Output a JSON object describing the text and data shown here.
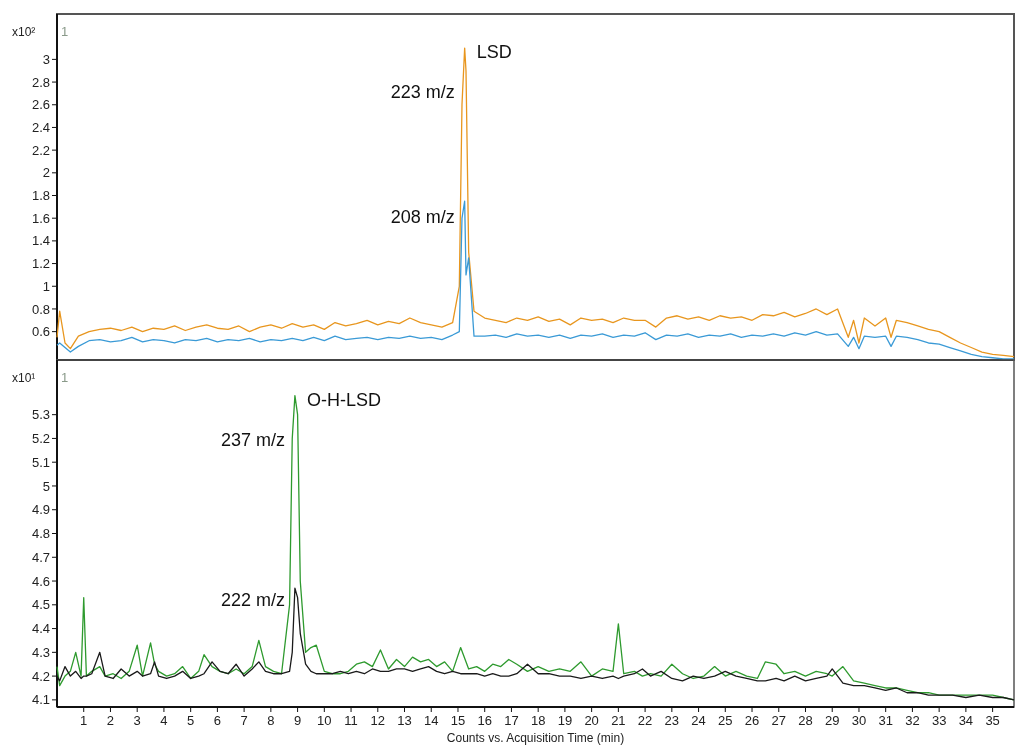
{
  "chart_data": [
    {
      "type": "line",
      "ylabel": "x10²",
      "annotations": [
        {
          "text": "LSD",
          "x": 15.25,
          "y": 3.1
        },
        "1"
      ],
      "xlim": [
        0,
        35.8
      ],
      "ylim": [
        0.35,
        3.4
      ],
      "yticks": [
        0.6,
        0.8,
        1,
        1.2,
        1.4,
        1.6,
        1.8,
        2,
        2.2,
        2.4,
        2.6,
        2.8,
        3
      ],
      "tick_labels": "y",
      "grid": false,
      "x": [
        0,
        0.1,
        0.3,
        0.5,
        0.8,
        1.2,
        1.6,
        2,
        2.4,
        2.8,
        3.2,
        3.6,
        4,
        4.4,
        4.8,
        5.2,
        5.6,
        6,
        6.4,
        6.8,
        7.2,
        7.6,
        8,
        8.4,
        8.8,
        9.2,
        9.6,
        10,
        10.4,
        10.8,
        11.2,
        11.6,
        12,
        12.4,
        12.8,
        13.2,
        13.6,
        14,
        14.4,
        14.8,
        15.05,
        15.15,
        15.25,
        15.3,
        15.4,
        15.6,
        16,
        16.4,
        16.8,
        17.2,
        17.6,
        18,
        18.4,
        18.8,
        19.2,
        19.6,
        20,
        20.4,
        20.8,
        21.2,
        21.6,
        22,
        22.4,
        22.8,
        23.2,
        23.6,
        24,
        24.4,
        24.8,
        25.2,
        25.6,
        26,
        26.4,
        26.8,
        27.2,
        27.6,
        28,
        28.4,
        28.8,
        29.2,
        29.6,
        29.8,
        30,
        30.2,
        30.6,
        31,
        31.2,
        31.4,
        31.8,
        32.2,
        32.6,
        33,
        33.4,
        33.8,
        34.2,
        34.6,
        35,
        35.4,
        35.8
      ],
      "series": [
        {
          "name": "223 m/z",
          "color": "#e8961e",
          "values": [
            0.55,
            0.78,
            0.5,
            0.45,
            0.56,
            0.6,
            0.62,
            0.63,
            0.61,
            0.64,
            0.6,
            0.63,
            0.62,
            0.65,
            0.61,
            0.64,
            0.66,
            0.63,
            0.62,
            0.65,
            0.6,
            0.64,
            0.66,
            0.63,
            0.67,
            0.64,
            0.66,
            0.62,
            0.68,
            0.65,
            0.67,
            0.7,
            0.66,
            0.69,
            0.67,
            0.72,
            0.68,
            0.66,
            0.64,
            0.68,
            1.0,
            2.6,
            3.1,
            2.9,
            1.3,
            0.78,
            0.72,
            0.7,
            0.68,
            0.72,
            0.7,
            0.73,
            0.69,
            0.71,
            0.66,
            0.72,
            0.7,
            0.71,
            0.68,
            0.72,
            0.7,
            0.7,
            0.64,
            0.72,
            0.74,
            0.71,
            0.73,
            0.7,
            0.74,
            0.72,
            0.73,
            0.7,
            0.75,
            0.74,
            0.77,
            0.73,
            0.76,
            0.8,
            0.75,
            0.8,
            0.55,
            0.7,
            0.5,
            0.72,
            0.65,
            0.72,
            0.55,
            0.7,
            0.68,
            0.65,
            0.62,
            0.6,
            0.55,
            0.5,
            0.46,
            0.42,
            0.4,
            0.39,
            0.38
          ]
        },
        {
          "name": "208 m/z",
          "color": "#3a9ad6",
          "values": [
            0.48,
            0.5,
            0.46,
            0.42,
            0.47,
            0.52,
            0.53,
            0.51,
            0.52,
            0.55,
            0.51,
            0.53,
            0.52,
            0.5,
            0.53,
            0.52,
            0.54,
            0.51,
            0.53,
            0.52,
            0.54,
            0.51,
            0.53,
            0.52,
            0.54,
            0.52,
            0.55,
            0.52,
            0.56,
            0.53,
            0.54,
            0.55,
            0.53,
            0.55,
            0.54,
            0.56,
            0.54,
            0.55,
            0.53,
            0.57,
            0.6,
            1.6,
            1.75,
            1.1,
            1.25,
            0.56,
            0.56,
            0.57,
            0.55,
            0.58,
            0.56,
            0.57,
            0.55,
            0.57,
            0.54,
            0.57,
            0.56,
            0.58,
            0.55,
            0.57,
            0.56,
            0.59,
            0.53,
            0.57,
            0.56,
            0.58,
            0.55,
            0.57,
            0.56,
            0.58,
            0.55,
            0.57,
            0.56,
            0.58,
            0.56,
            0.59,
            0.57,
            0.6,
            0.57,
            0.58,
            0.47,
            0.55,
            0.45,
            0.56,
            0.55,
            0.56,
            0.47,
            0.56,
            0.55,
            0.53,
            0.5,
            0.49,
            0.46,
            0.43,
            0.4,
            0.38,
            0.37,
            0.36,
            0.36
          ]
        }
      ]
    },
    {
      "type": "line",
      "ylabel": "x10¹",
      "xlabel": "Counts vs. Acquisition Time (min)",
      "annotations": [
        {
          "text": "O-H-LSD",
          "x": 8.9,
          "y": 5.38
        },
        "1"
      ],
      "xlim": [
        0,
        35.8
      ],
      "ylim": [
        4.07,
        5.53
      ],
      "xticks": [
        1,
        2,
        3,
        4,
        5,
        6,
        7,
        8,
        9,
        10,
        11,
        12,
        13,
        14,
        15,
        16,
        17,
        18,
        19,
        20,
        21,
        22,
        23,
        24,
        25,
        26,
        27,
        28,
        29,
        30,
        31,
        32,
        33,
        34,
        35
      ],
      "yticks": [
        4.1,
        4.2,
        4.3,
        4.4,
        4.5,
        4.6,
        4.7,
        4.8,
        4.9,
        5,
        5.1,
        5.2,
        5.3
      ],
      "grid": false,
      "x": [
        0,
        0.1,
        0.3,
        0.5,
        0.7,
        0.9,
        1.0,
        1.1,
        1.3,
        1.6,
        1.8,
        2.1,
        2.4,
        2.7,
        3.0,
        3.2,
        3.5,
        3.65,
        3.8,
        4.1,
        4.4,
        4.7,
        5.0,
        5.3,
        5.5,
        5.8,
        6.1,
        6.4,
        6.7,
        7.0,
        7.3,
        7.55,
        7.8,
        8.1,
        8.4,
        8.7,
        8.8,
        8.9,
        9.0,
        9.1,
        9.3,
        9.5,
        9.7,
        10,
        10.3,
        10.6,
        10.9,
        11.2,
        11.5,
        11.8,
        12.1,
        12.4,
        12.7,
        13,
        13.3,
        13.6,
        13.9,
        14.2,
        14.5,
        14.8,
        15.1,
        15.4,
        15.7,
        16,
        16.3,
        16.6,
        16.9,
        17.2,
        17.6,
        18,
        18.4,
        18.8,
        19.2,
        19.6,
        20,
        20.4,
        20.8,
        21.0,
        21.2,
        21.6,
        21.9,
        22.2,
        22.6,
        23,
        23.4,
        23.8,
        24.2,
        24.6,
        25,
        25.4,
        25.8,
        26.2,
        26.5,
        26.9,
        27.2,
        27.6,
        28,
        28.4,
        28.8,
        29.0,
        29.4,
        29.8,
        30.2,
        30.6,
        31,
        31.4,
        31.8,
        32.2,
        32.6,
        33,
        33.5,
        34,
        34.5,
        35,
        35.4,
        35.8
      ],
      "series": [
        {
          "name": "237 m/z",
          "color": "#2e9a2e",
          "values": [
            4.24,
            4.16,
            4.2,
            4.22,
            4.3,
            4.2,
            4.53,
            4.2,
            4.22,
            4.24,
            4.2,
            4.21,
            4.19,
            4.22,
            4.33,
            4.2,
            4.34,
            4.25,
            4.22,
            4.2,
            4.21,
            4.24,
            4.19,
            4.22,
            4.29,
            4.24,
            4.22,
            4.21,
            4.23,
            4.21,
            4.24,
            4.35,
            4.24,
            4.22,
            4.21,
            4.5,
            5.2,
            5.38,
            5.3,
            4.6,
            4.3,
            4.32,
            4.33,
            4.22,
            4.21,
            4.21,
            4.22,
            4.25,
            4.26,
            4.24,
            4.31,
            4.23,
            4.27,
            4.24,
            4.28,
            4.26,
            4.27,
            4.24,
            4.26,
            4.22,
            4.32,
            4.23,
            4.24,
            4.22,
            4.25,
            4.24,
            4.27,
            4.25,
            4.22,
            4.24,
            4.22,
            4.23,
            4.22,
            4.26,
            4.2,
            4.23,
            4.22,
            4.42,
            4.21,
            4.22,
            4.2,
            4.21,
            4.2,
            4.25,
            4.21,
            4.19,
            4.2,
            4.24,
            4.2,
            4.22,
            4.2,
            4.19,
            4.26,
            4.25,
            4.21,
            4.22,
            4.2,
            4.22,
            4.21,
            4.2,
            4.24,
            4.18,
            4.17,
            4.16,
            4.15,
            4.15,
            4.14,
            4.13,
            4.13,
            4.12,
            4.12,
            4.12,
            4.12,
            4.12,
            4.11,
            4.1
          ]
        },
        {
          "name": "222 m/z",
          "color": "#1a1a1a",
          "values": [
            4.2,
            4.18,
            4.24,
            4.2,
            4.22,
            4.19,
            4.2,
            4.2,
            4.21,
            4.3,
            4.2,
            4.19,
            4.23,
            4.2,
            4.22,
            4.2,
            4.21,
            4.26,
            4.2,
            4.19,
            4.2,
            4.22,
            4.19,
            4.2,
            4.21,
            4.26,
            4.22,
            4.21,
            4.25,
            4.2,
            4.23,
            4.26,
            4.22,
            4.21,
            4.21,
            4.22,
            4.3,
            4.57,
            4.53,
            4.38,
            4.25,
            4.22,
            4.21,
            4.21,
            4.21,
            4.22,
            4.21,
            4.22,
            4.21,
            4.23,
            4.22,
            4.22,
            4.23,
            4.23,
            4.22,
            4.23,
            4.24,
            4.22,
            4.21,
            4.22,
            4.21,
            4.21,
            4.21,
            4.2,
            4.21,
            4.2,
            4.2,
            4.21,
            4.25,
            4.21,
            4.21,
            4.2,
            4.2,
            4.19,
            4.2,
            4.19,
            4.2,
            4.19,
            4.2,
            4.21,
            4.23,
            4.2,
            4.22,
            4.19,
            4.18,
            4.2,
            4.19,
            4.2,
            4.22,
            4.2,
            4.19,
            4.18,
            4.18,
            4.19,
            4.18,
            4.2,
            4.18,
            4.19,
            4.2,
            4.23,
            4.17,
            4.16,
            4.16,
            4.15,
            4.14,
            4.15,
            4.13,
            4.13,
            4.12,
            4.12,
            4.12,
            4.11,
            4.12,
            4.11,
            4.11,
            4.1
          ]
        }
      ]
    }
  ]
}
